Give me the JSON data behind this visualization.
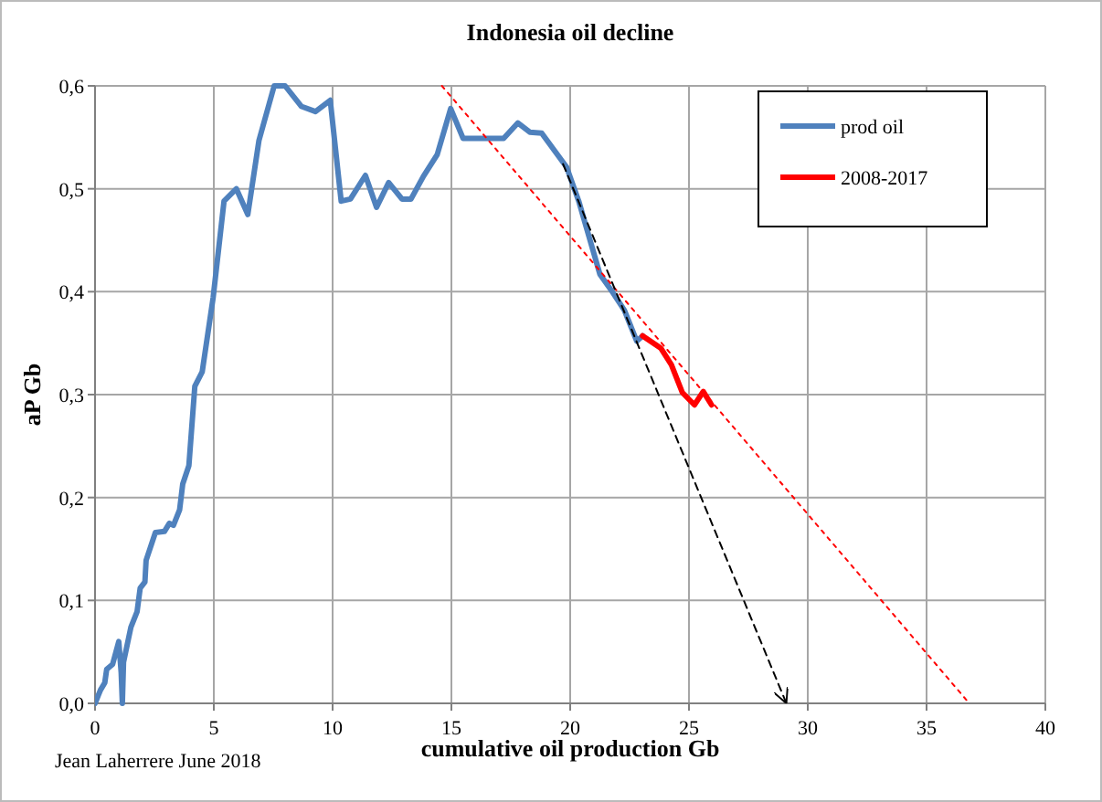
{
  "chart_data": {
    "type": "line",
    "title": "Indonesia oil decline",
    "xlabel": "cumulative oil production Gb",
    "ylabel": "aP Gb",
    "annotations": [
      "Jean Laherrere June 2018"
    ],
    "xlim": [
      0,
      40
    ],
    "xticks": [
      0,
      5,
      10,
      15,
      20,
      25,
      30,
      35,
      40
    ],
    "ylim": [
      0,
      0.6
    ],
    "yticks": [
      {
        "value": 0,
        "label": "0,0"
      },
      {
        "value": 0.1,
        "label": "0,1"
      },
      {
        "value": 0.2,
        "label": "0,2"
      },
      {
        "value": 0.3,
        "label": "0,3"
      },
      {
        "value": 0.4,
        "label": "0,4"
      },
      {
        "value": 0.5,
        "label": "0,5"
      },
      {
        "value": 0.6,
        "label": "0,6"
      }
    ],
    "grid": true,
    "legend": "top right",
    "marker": "none",
    "series": [
      {
        "name": "prod oil",
        "color": "#4f81bd",
        "line_style": "solid",
        "x": [
          0,
          0.23,
          0.41,
          0.49,
          0.74,
          1.0,
          1.1,
          1.15,
          1.2,
          1.51,
          1.77,
          1.9,
          2.1,
          2.15,
          2.54,
          2.92,
          3.13,
          3.3,
          3.56,
          3.69,
          3.95,
          4.2,
          4.51,
          4.97,
          5.43,
          5.95,
          6.43,
          6.9,
          7.54,
          8.0,
          8.69,
          9.28,
          9.9,
          10.36,
          10.75,
          11.38,
          11.85,
          12.36,
          12.92,
          13.3,
          13.82,
          14.4,
          14.97,
          15.49,
          17.2,
          17.8,
          18.3,
          18.8,
          19.85,
          20.36,
          21.25,
          21.77,
          22.28,
          22.8,
          23.05
        ],
        "values": [
          0,
          0.013,
          0.02,
          0.033,
          0.038,
          0.06,
          0.03,
          0,
          0.04,
          0.074,
          0.089,
          0.112,
          0.118,
          0.139,
          0.166,
          0.167,
          0.175,
          0.173,
          0.188,
          0.213,
          0.231,
          0.308,
          0.322,
          0.394,
          0.488,
          0.5,
          0.475,
          0.547,
          0.6,
          0.6,
          0.58,
          0.575,
          0.586,
          0.488,
          0.49,
          0.513,
          0.482,
          0.506,
          0.49,
          0.49,
          0.512,
          0.533,
          0.578,
          0.549,
          0.549,
          0.564,
          0.555,
          0.554,
          0.521,
          0.488,
          0.417,
          0.4,
          0.382,
          0.352,
          0.357
        ]
      },
      {
        "name": "2008-2017",
        "color": "#ff0000",
        "line_style": "solid",
        "x": [
          23.05,
          23.82,
          24.26,
          24.72,
          25.23,
          25.6,
          25.95
        ],
        "values": [
          0.357,
          0.345,
          0.329,
          0.302,
          0.29,
          0.303,
          0.29
        ]
      },
      {
        "color": "#ff0000",
        "line_style": "dotted",
        "x": [
          14.6,
          36.8
        ],
        "values": [
          0.6,
          0
        ]
      },
      {
        "color": "#000000",
        "line_style": "dashed",
        "x": [
          19.7,
          29.1
        ],
        "values": [
          0.524,
          0
        ]
      }
    ]
  }
}
